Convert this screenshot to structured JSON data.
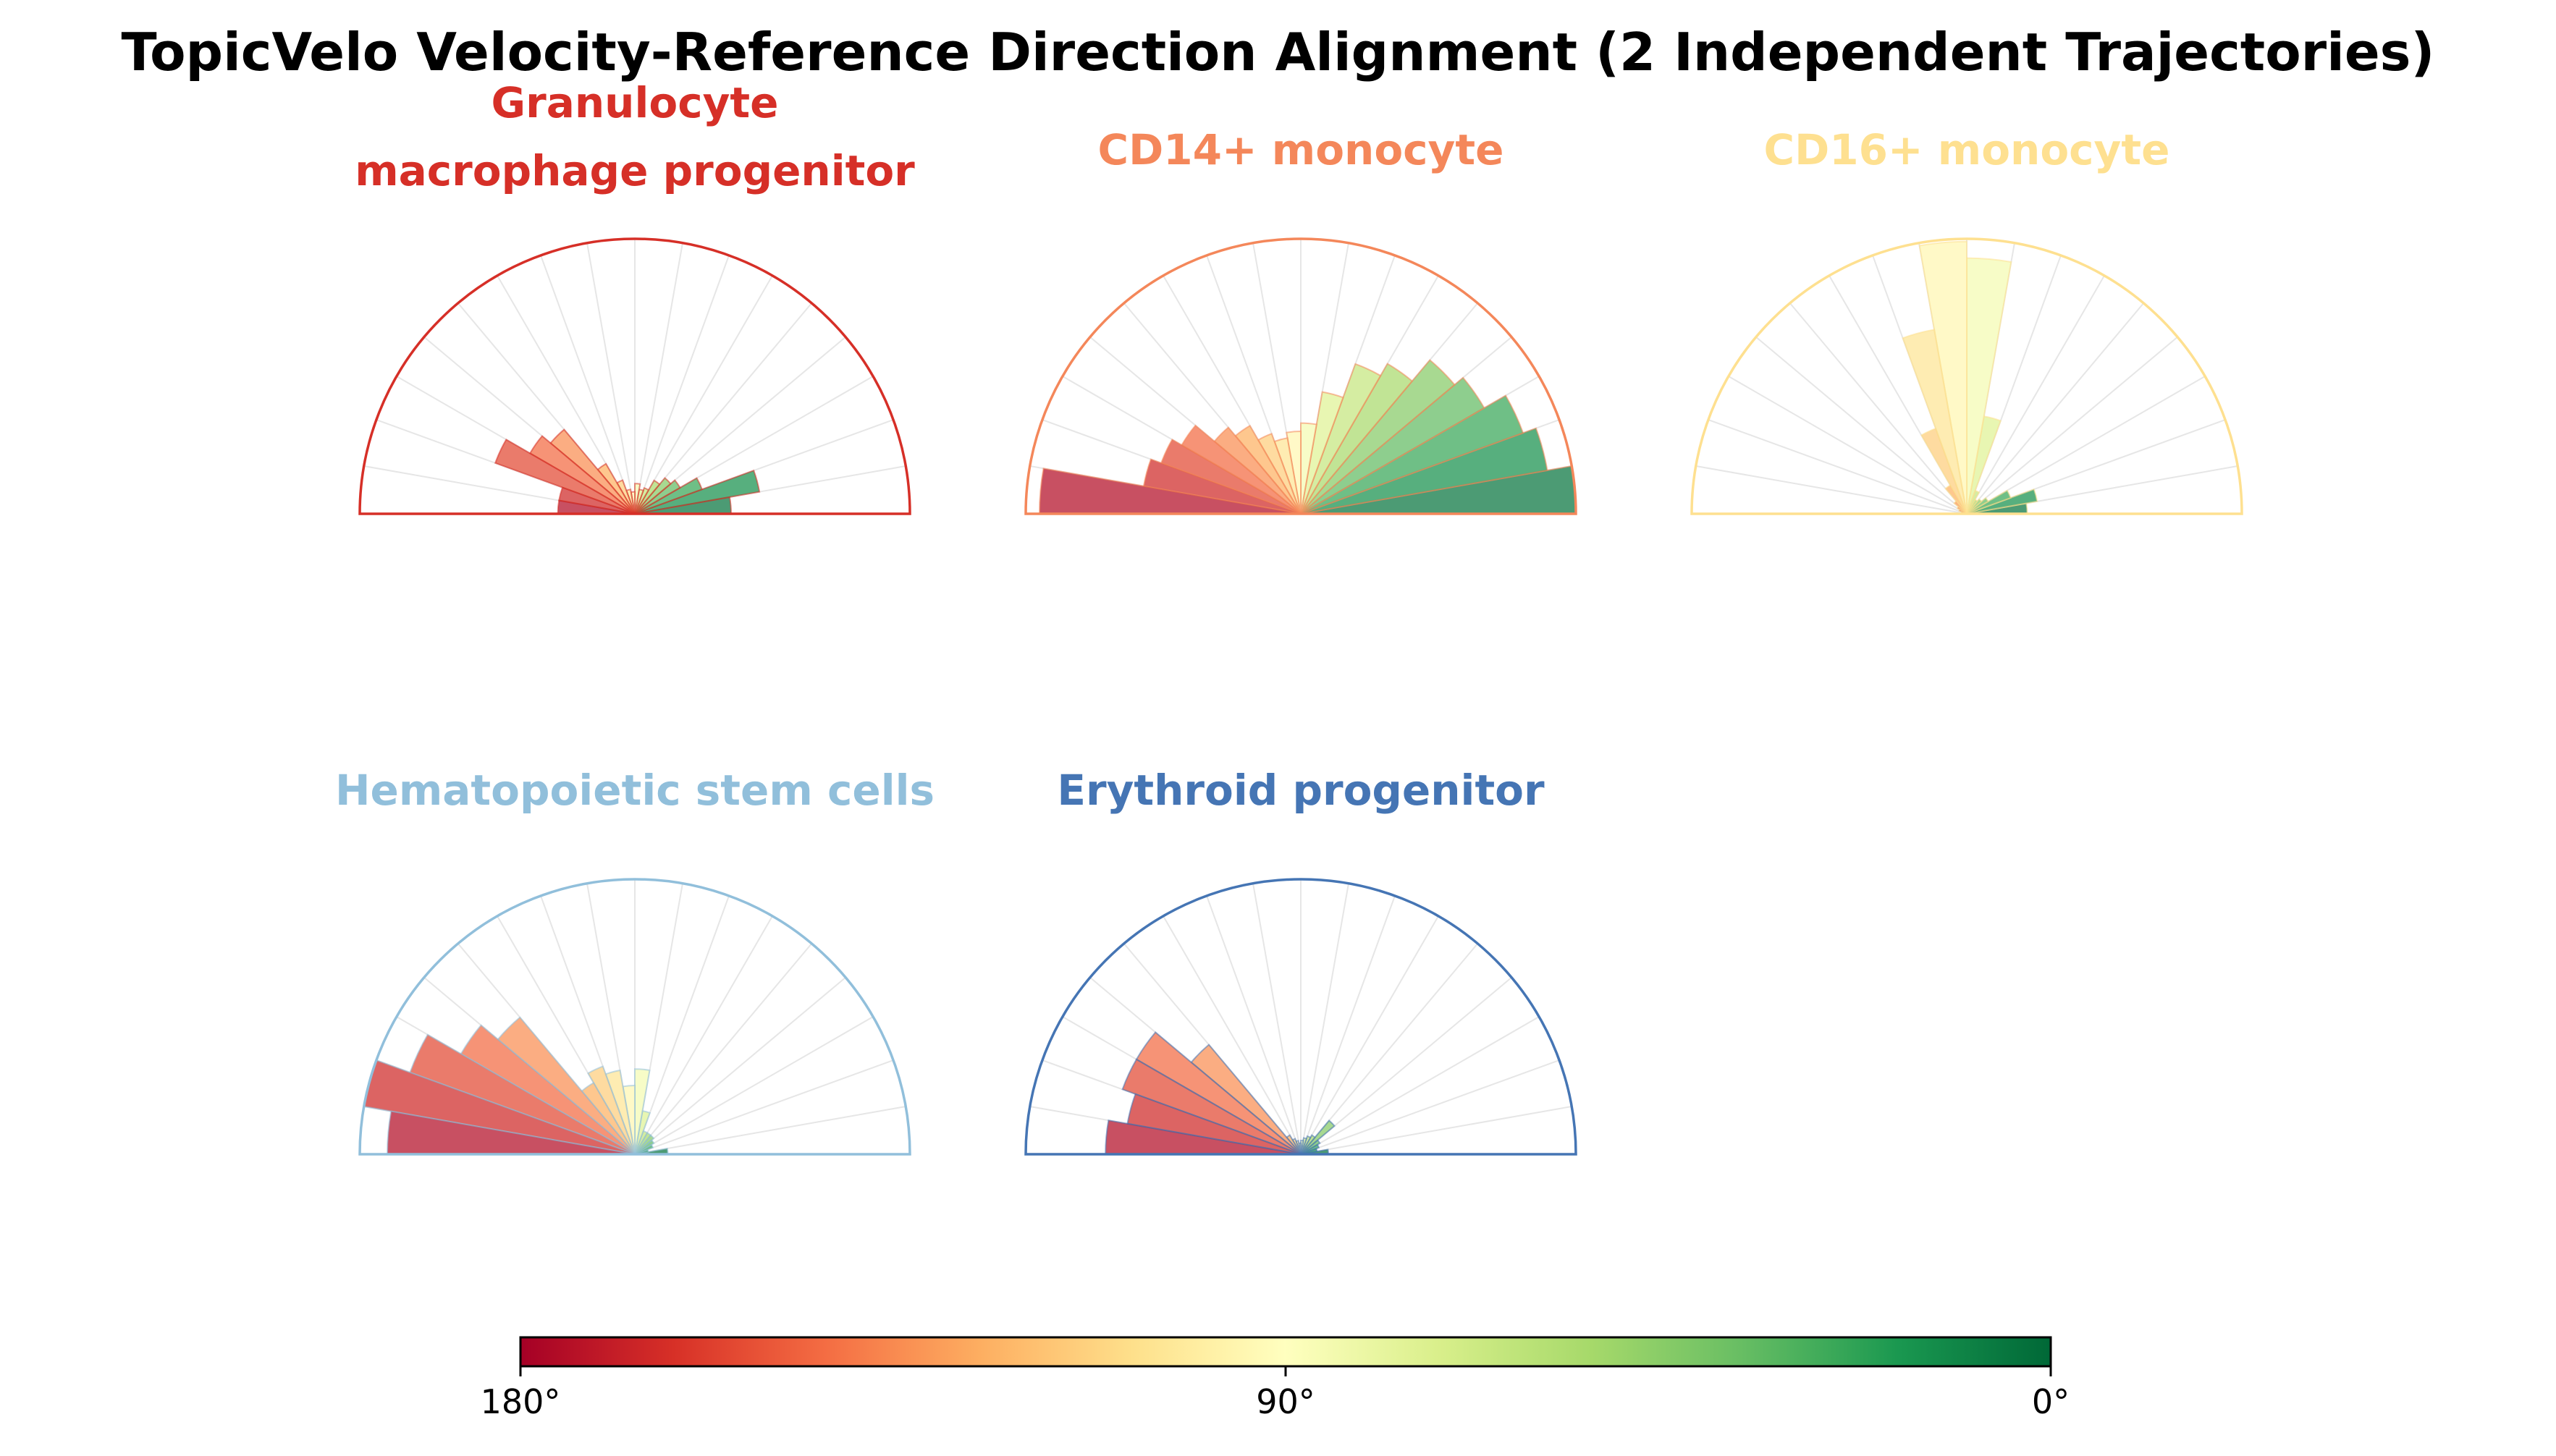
{
  "title": "TopicVelo Velocity-Reference Direction Alignment (2 Independent Trajectories)",
  "chart_data": {
    "type": "polar-histogram",
    "angle_range_deg": [
      0,
      180
    ],
    "bin_width_deg": 10,
    "bin_centers_deg": [
      5,
      15,
      25,
      35,
      45,
      55,
      65,
      75,
      85,
      95,
      105,
      115,
      125,
      135,
      145,
      155,
      165,
      175
    ],
    "radial_max": 1.0,
    "panels": [
      {
        "title": "Granulocyte macrophage progenitor",
        "title_lines": [
          "Granulocyte",
          "macrophage progenitor"
        ],
        "color": "#d62f27",
        "values": [
          0.35,
          0.46,
          0.26,
          0.19,
          0.17,
          0.14,
          0.1,
          0.09,
          0.11,
          0.08,
          0.09,
          0.13,
          0.21,
          0.4,
          0.44,
          0.54,
          0.28,
          0.28
        ]
      },
      {
        "title": "CD14+ monocyte",
        "title_lines": [
          "CD14+ monocyte"
        ],
        "color": "#f4875a",
        "values": [
          1.0,
          0.91,
          0.86,
          0.77,
          0.73,
          0.63,
          0.58,
          0.45,
          0.33,
          0.3,
          0.28,
          0.31,
          0.37,
          0.41,
          0.5,
          0.54,
          0.58,
          0.95
        ]
      },
      {
        "title": "CD16+ monocyte",
        "title_lines": [
          "CD16+ monocyte"
        ],
        "color": "#fee090",
        "values": [
          0.22,
          0.26,
          0.17,
          0.09,
          0.07,
          0.06,
          0.09,
          0.36,
          0.93,
          0.99,
          0.68,
          0.33,
          0.12,
          0.06,
          0.04,
          0.03,
          0.02,
          0.02
        ]
      },
      {
        "title": "Hematopoietic stem cells",
        "title_lines": [
          "Hematopoietic stem cells"
        ],
        "color": "#91bfdb",
        "values": [
          0.12,
          0.05,
          0.07,
          0.08,
          0.09,
          0.09,
          0.09,
          0.16,
          0.31,
          0.25,
          0.31,
          0.34,
          0.3,
          0.65,
          0.73,
          0.87,
          1.0,
          0.9
        ]
      },
      {
        "title": "Erythroid progenitor",
        "title_lines": [
          "Erythroid progenitor"
        ],
        "color": "#4575b4",
        "values": [
          0.1,
          0.06,
          0.07,
          0.08,
          0.16,
          0.08,
          0.07,
          0.06,
          0.05,
          0.04,
          0.05,
          0.06,
          0.08,
          0.52,
          0.69,
          0.69,
          0.64,
          0.71
        ]
      }
    ],
    "colorbar": {
      "colormap": "RdYlGn",
      "tick_labels": [
        "180°",
        "90°",
        "0°"
      ],
      "tick_values_deg": [
        180,
        90,
        0
      ]
    }
  }
}
